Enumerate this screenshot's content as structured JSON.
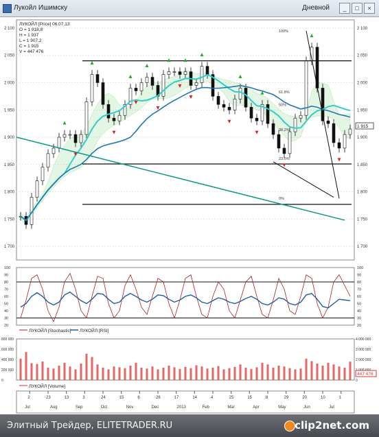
{
  "window": {
    "title": "Лукойл Ишимску",
    "period": "Дневной",
    "buttons": [
      "_",
      "□",
      "×"
    ]
  },
  "info_box": {
    "lines": [
      "ЛУКОЙЛ [Price] 06.07.13",
      "O = 1 918,8",
      "H = 1 937",
      "L = 1 907,2",
      "C = 1 915",
      "V = 447 476"
    ]
  },
  "fib_labels": [
    "100%",
    "61.8%",
    "50%",
    "38.2%",
    "23.6%",
    "0%"
  ],
  "price_last": "1 915",
  "price_axis": [
    "2 100",
    "2 050",
    "2 000",
    "1 950",
    "1 900",
    "1 850",
    "1 800",
    "1 750",
    "1 700"
  ],
  "osc_axis": [
    "100",
    "90",
    "80",
    "70",
    "60",
    "50",
    "40",
    "30",
    "20"
  ],
  "volume_axis_left": [
    "800 000",
    "600 000",
    "400 000",
    "200 000",
    "0"
  ],
  "volume_axis_right": [
    "4 000 000",
    "3 000 000",
    "2 000 000",
    "1 000 000",
    "0"
  ],
  "volume_last": "447 476",
  "legends": {
    "oscillator": [
      "ЛУКОЙЛ [Stochastic]",
      "ЛУКОЙЛ [RSI]"
    ],
    "volume": "ЛУКОЙЛ [Volume]"
  },
  "x_axis": {
    "ticks": [
      "2",
      "23",
      "13",
      "3",
      "24",
      "15",
      "6",
      "26",
      "17",
      "14",
      "4",
      "25",
      "15",
      "8",
      "29",
      "20",
      "10",
      "1"
    ],
    "months": [
      "Jul",
      "Aug",
      "Sep",
      "Oct",
      "Nov",
      "Dec",
      "2013",
      "Feb",
      "Mar",
      "Apr",
      "May",
      "Jun",
      "Jul"
    ]
  },
  "footer": {
    "caption": "Элитный Трейдер, ELITETRADER.RU",
    "logo": "clip2net.com"
  },
  "colors": {
    "candles": "#111111",
    "up_marker": "#22aa22",
    "down_marker": "#dd2222",
    "ma_fast": "#33cccc",
    "ma_slow": "#1f78b4",
    "ichimoku_cloud": "#66cc66",
    "trendline": "#119988",
    "stochastic": "#aa2222",
    "rsi": "#1f5f9f",
    "volume": "#dd3333"
  },
  "chart_data": [
    {
      "type": "candlestick",
      "title": "Лукойл Ишимску",
      "ylim": [
        1675,
        2115
      ],
      "y_ticks": [
        1700,
        1750,
        1800,
        1850,
        1900,
        1950,
        2000,
        2050,
        2100
      ],
      "series": [
        {
          "name": "ЛУКОЙЛ [Price]",
          "close": [
            1755,
            1740,
            1790,
            1820,
            1845,
            1870,
            1880,
            1900,
            1905,
            1905,
            1890,
            1905,
            1965,
            2015,
            2000,
            1960,
            1935,
            1930,
            1940,
            1960,
            1990,
            1985,
            2000,
            2010,
            1995,
            1975,
            2015,
            2020,
            2020,
            2015,
            2020,
            1995,
            2000,
            2030,
            2015,
            1975,
            1960,
            1955,
            1950,
            1970,
            1990,
            1955,
            1935,
            1930,
            1960,
            1925,
            1905,
            1880,
            1870,
            1910,
            1935,
            1940,
            2040,
            2065,
            1990,
            1930,
            1925,
            1890,
            1880,
            1905,
            1915
          ]
        }
      ],
      "horizontal_levels": [
        2040,
        1851,
        1777
      ],
      "fibonacci": {
        "high": 2095,
        "low": 1788,
        "levels": {
          "100%": 2095,
          "61.8%": 1983,
          "50%": 1960,
          "38.2%": 1914,
          "23.6%": 1861,
          "0%": 1788
        }
      }
    },
    {
      "type": "line",
      "title": "Oscillators",
      "ylim": [
        20,
        100
      ],
      "levels": [
        80,
        30
      ],
      "series": [
        {
          "name": "ЛУКОЙЛ [Stochastic]",
          "values": [
            30,
            55,
            85,
            90,
            70,
            40,
            25,
            45,
            80,
            92,
            70,
            40,
            30,
            60,
            88,
            85,
            50,
            30,
            40,
            75,
            90,
            70,
            45,
            35,
            60,
            85,
            80,
            50,
            30,
            55,
            85,
            90,
            60,
            35,
            30,
            60,
            80,
            70,
            40,
            30,
            55,
            80,
            88,
            60,
            35,
            30,
            55,
            85,
            70,
            40,
            35,
            60,
            90,
            85,
            50,
            30,
            45,
            80,
            90,
            75,
            60
          ]
        },
        {
          "name": "ЛУКОЙЛ [RSI]",
          "values": [
            45,
            50,
            60,
            65,
            60,
            52,
            48,
            52,
            62,
            66,
            60,
            54,
            50,
            56,
            64,
            63,
            56,
            50,
            52,
            60,
            64,
            60,
            55,
            52,
            56,
            62,
            61,
            56,
            52,
            55,
            60,
            62,
            58,
            52,
            50,
            54,
            58,
            56,
            52,
            50,
            53,
            57,
            60,
            56,
            50,
            48,
            52,
            58,
            56,
            50,
            48,
            52,
            62,
            64,
            56,
            46,
            44,
            50,
            56,
            55,
            54
          ]
        }
      ]
    },
    {
      "type": "bar",
      "title": "Volume",
      "ylim": [
        0,
        1000000
      ],
      "series": [
        {
          "name": "ЛУКОЙЛ [Volume]",
          "values": [
            520000,
            680000,
            410000,
            390000,
            450000,
            300000,
            280000,
            350000,
            420000,
            330000,
            260000,
            400000,
            640000,
            560000,
            380000,
            300000,
            260000,
            330000,
            310000,
            290000,
            350000,
            420000,
            300000,
            280000,
            330000,
            260000,
            300000,
            350000,
            310000,
            270000,
            320000,
            290000,
            360000,
            330000,
            280000,
            300000,
            340000,
            260000,
            290000,
            320000,
            380000,
            300000,
            270000,
            310000,
            420000,
            380000,
            300000,
            350000,
            330000,
            290000,
            260000,
            280000,
            520000,
            460000,
            400000,
            350000,
            420000,
            380000,
            330000,
            300000,
            447476
          ]
        }
      ]
    }
  ]
}
